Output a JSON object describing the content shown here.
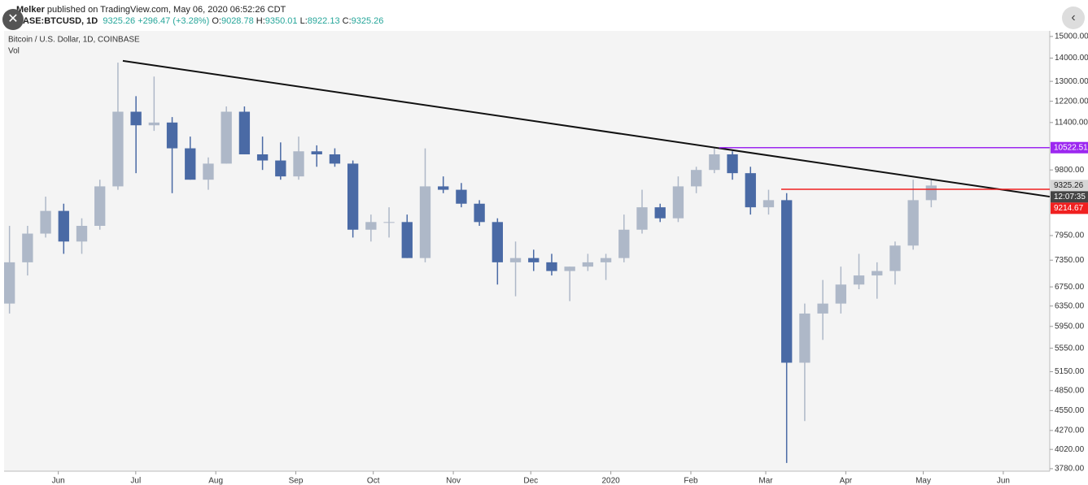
{
  "header": {
    "author": "Melker",
    "published": "published on TradingView.com, May 06, 2020 06:52:26 CDT",
    "symbol": "BASE:BTCUSD, 1D",
    "last": "9325.26",
    "change": "+296.47 (+3.28%)",
    "ohlc": [
      {
        "label": "O:",
        "value": "9028.78"
      },
      {
        "label": "H:",
        "value": "9350.01"
      },
      {
        "label": "L:",
        "value": "8922.13"
      },
      {
        "label": "C:",
        "value": "9325.26"
      }
    ]
  },
  "chart_data": {
    "type": "candlestick",
    "title": "Bitcoin / U.S. Dollar, 1D, COINBASE",
    "subtitle": "Vol",
    "up_color": "#aeb8c8",
    "down_color": "#4a6aa5",
    "log_scale": true,
    "x": [
      "2019-05-11",
      "2019-05-18",
      "2019-05-25",
      "2019-06-01",
      "2019-06-08",
      "2019-06-15",
      "2019-06-22",
      "2019-06-29",
      "2019-07-06",
      "2019-07-13",
      "2019-07-20",
      "2019-07-27",
      "2019-08-03",
      "2019-08-10",
      "2019-08-17",
      "2019-08-24",
      "2019-08-31",
      "2019-09-07",
      "2019-09-14",
      "2019-09-21",
      "2019-09-28",
      "2019-10-05",
      "2019-10-12",
      "2019-10-19",
      "2019-10-26",
      "2019-11-02",
      "2019-11-09",
      "2019-11-16",
      "2019-11-23",
      "2019-11-30",
      "2019-12-07",
      "2019-12-14",
      "2019-12-21",
      "2019-12-28",
      "2020-01-04",
      "2020-01-11",
      "2020-01-18",
      "2020-01-25",
      "2020-02-01",
      "2020-02-08",
      "2020-02-15",
      "2020-02-22",
      "2020-02-29",
      "2020-03-07",
      "2020-03-14",
      "2020-03-21",
      "2020-03-28",
      "2020-04-04",
      "2020-04-11",
      "2020-04-18",
      "2020-04-25",
      "2020-05-02"
    ],
    "open": [
      6400,
      7300,
      8000,
      8600,
      7800,
      8200,
      9300,
      11800,
      11300,
      11400,
      10500,
      9500,
      10000,
      11800,
      10300,
      10100,
      9600,
      10400,
      10300,
      10000,
      8100,
      8300,
      8300,
      7400,
      9300,
      9200,
      8800,
      8300,
      7300,
      7400,
      7300,
      7100,
      7200,
      7300,
      7400,
      8100,
      8700,
      8400,
      9300,
      9800,
      10300,
      9700,
      8700,
      8900,
      5300,
      6200,
      6400,
      6800,
      7000,
      7100,
      7700,
      8900
    ],
    "high": [
      8200,
      8200,
      9000,
      8800,
      8400,
      9500,
      13800,
      12400,
      13200,
      11600,
      10900,
      10200,
      12000,
      12000,
      10900,
      10700,
      10900,
      10600,
      10500,
      10100,
      8500,
      8700,
      8500,
      10500,
      9600,
      9400,
      8900,
      8400,
      7800,
      7600,
      7500,
      7200,
      7500,
      7500,
      8500,
      9200,
      8800,
      9600,
      9900,
      10500,
      10400,
      9900,
      9200,
      9100,
      6400,
      6900,
      7200,
      7500,
      7300,
      7800,
      9500,
      9500
    ],
    "low": [
      6200,
      7000,
      7900,
      7500,
      7500,
      8100,
      9200,
      9700,
      11100,
      9100,
      9500,
      9200,
      10000,
      10300,
      9800,
      9500,
      9500,
      9900,
      9900,
      7900,
      7800,
      7900,
      7400,
      7300,
      9100,
      8700,
      8200,
      6800,
      6550,
      7100,
      7000,
      6450,
      7100,
      6900,
      7300,
      8000,
      8300,
      8300,
      9100,
      9700,
      9500,
      8500,
      8500,
      3850,
      4400,
      5700,
      6200,
      6700,
      6500,
      6800,
      7600,
      8700
    ],
    "close": [
      7300,
      8000,
      8600,
      7800,
      8200,
      9300,
      11800,
      11300,
      11400,
      10500,
      9500,
      10000,
      11800,
      10300,
      10100,
      9600,
      10400,
      10300,
      10000,
      8100,
      8300,
      8300,
      7400,
      9300,
      9200,
      8800,
      8300,
      7300,
      7400,
      7300,
      7100,
      7200,
      7300,
      7400,
      8100,
      8700,
      8400,
      9300,
      9800,
      10300,
      9700,
      8700,
      8900,
      5300,
      6200,
      6400,
      6800,
      7000,
      7100,
      7700,
      8900,
      9325.26
    ],
    "xlim": [
      "2019-05-11",
      "2020-06-19"
    ],
    "xticks": [
      {
        "value": "2019-06-01",
        "label": "Jun"
      },
      {
        "value": "2019-07-01",
        "label": "Jul"
      },
      {
        "value": "2019-08-01",
        "label": "Aug"
      },
      {
        "value": "2019-09-01",
        "label": "Sep"
      },
      {
        "value": "2019-10-01",
        "label": "Oct"
      },
      {
        "value": "2019-11-01",
        "label": "Nov"
      },
      {
        "value": "2019-12-01",
        "label": "Dec"
      },
      {
        "value": "2020-01-01",
        "label": "2020"
      },
      {
        "value": "2020-02-01",
        "label": "Feb"
      },
      {
        "value": "2020-03-01",
        "label": "Mar"
      },
      {
        "value": "2020-04-01",
        "label": "Apr"
      },
      {
        "value": "2020-05-01",
        "label": "May"
      },
      {
        "value": "2020-06-01",
        "label": "Jun"
      }
    ],
    "ylim": [
      3750,
      15270
    ],
    "yticks": [
      {
        "value": 15000,
        "label": "15000.00"
      },
      {
        "value": 14000,
        "label": "14000.00"
      },
      {
        "value": 13000,
        "label": "13000.00"
      },
      {
        "value": 12200,
        "label": "12200.00"
      },
      {
        "value": 11400,
        "label": "11400.00"
      },
      {
        "value": 9800,
        "label": "9800.00"
      },
      {
        "value": 7950,
        "label": "7950.00"
      },
      {
        "value": 7350,
        "label": "7350.00"
      },
      {
        "value": 6750,
        "label": "6750.00"
      },
      {
        "value": 6350,
        "label": "6350.00"
      },
      {
        "value": 5950,
        "label": "5950.00"
      },
      {
        "value": 5550,
        "label": "5550.00"
      },
      {
        "value": 5150,
        "label": "5150.00"
      },
      {
        "value": 4850,
        "label": "4850.00"
      },
      {
        "value": 4550,
        "label": "4550.00"
      },
      {
        "value": 4270,
        "label": "4270.00"
      },
      {
        "value": 4020,
        "label": "4020.00"
      },
      {
        "value": 3780,
        "label": "3780.00"
      }
    ],
    "trendline": {
      "color": "#111111",
      "x": [
        "2019-06-26",
        "2020-06-19"
      ],
      "y": [
        13880,
        9000
      ]
    },
    "hlines": [
      {
        "value": 10522.51,
        "label": "10522.51",
        "color": "#9c27f0",
        "from": "2020-02-12"
      },
      {
        "value": 9214.67,
        "label": "9214.67",
        "color": "#f02020",
        "from": "2020-03-07"
      }
    ],
    "last_price": {
      "value": 9325.26,
      "label": "9325.26",
      "countdown": "12:07:35"
    }
  }
}
